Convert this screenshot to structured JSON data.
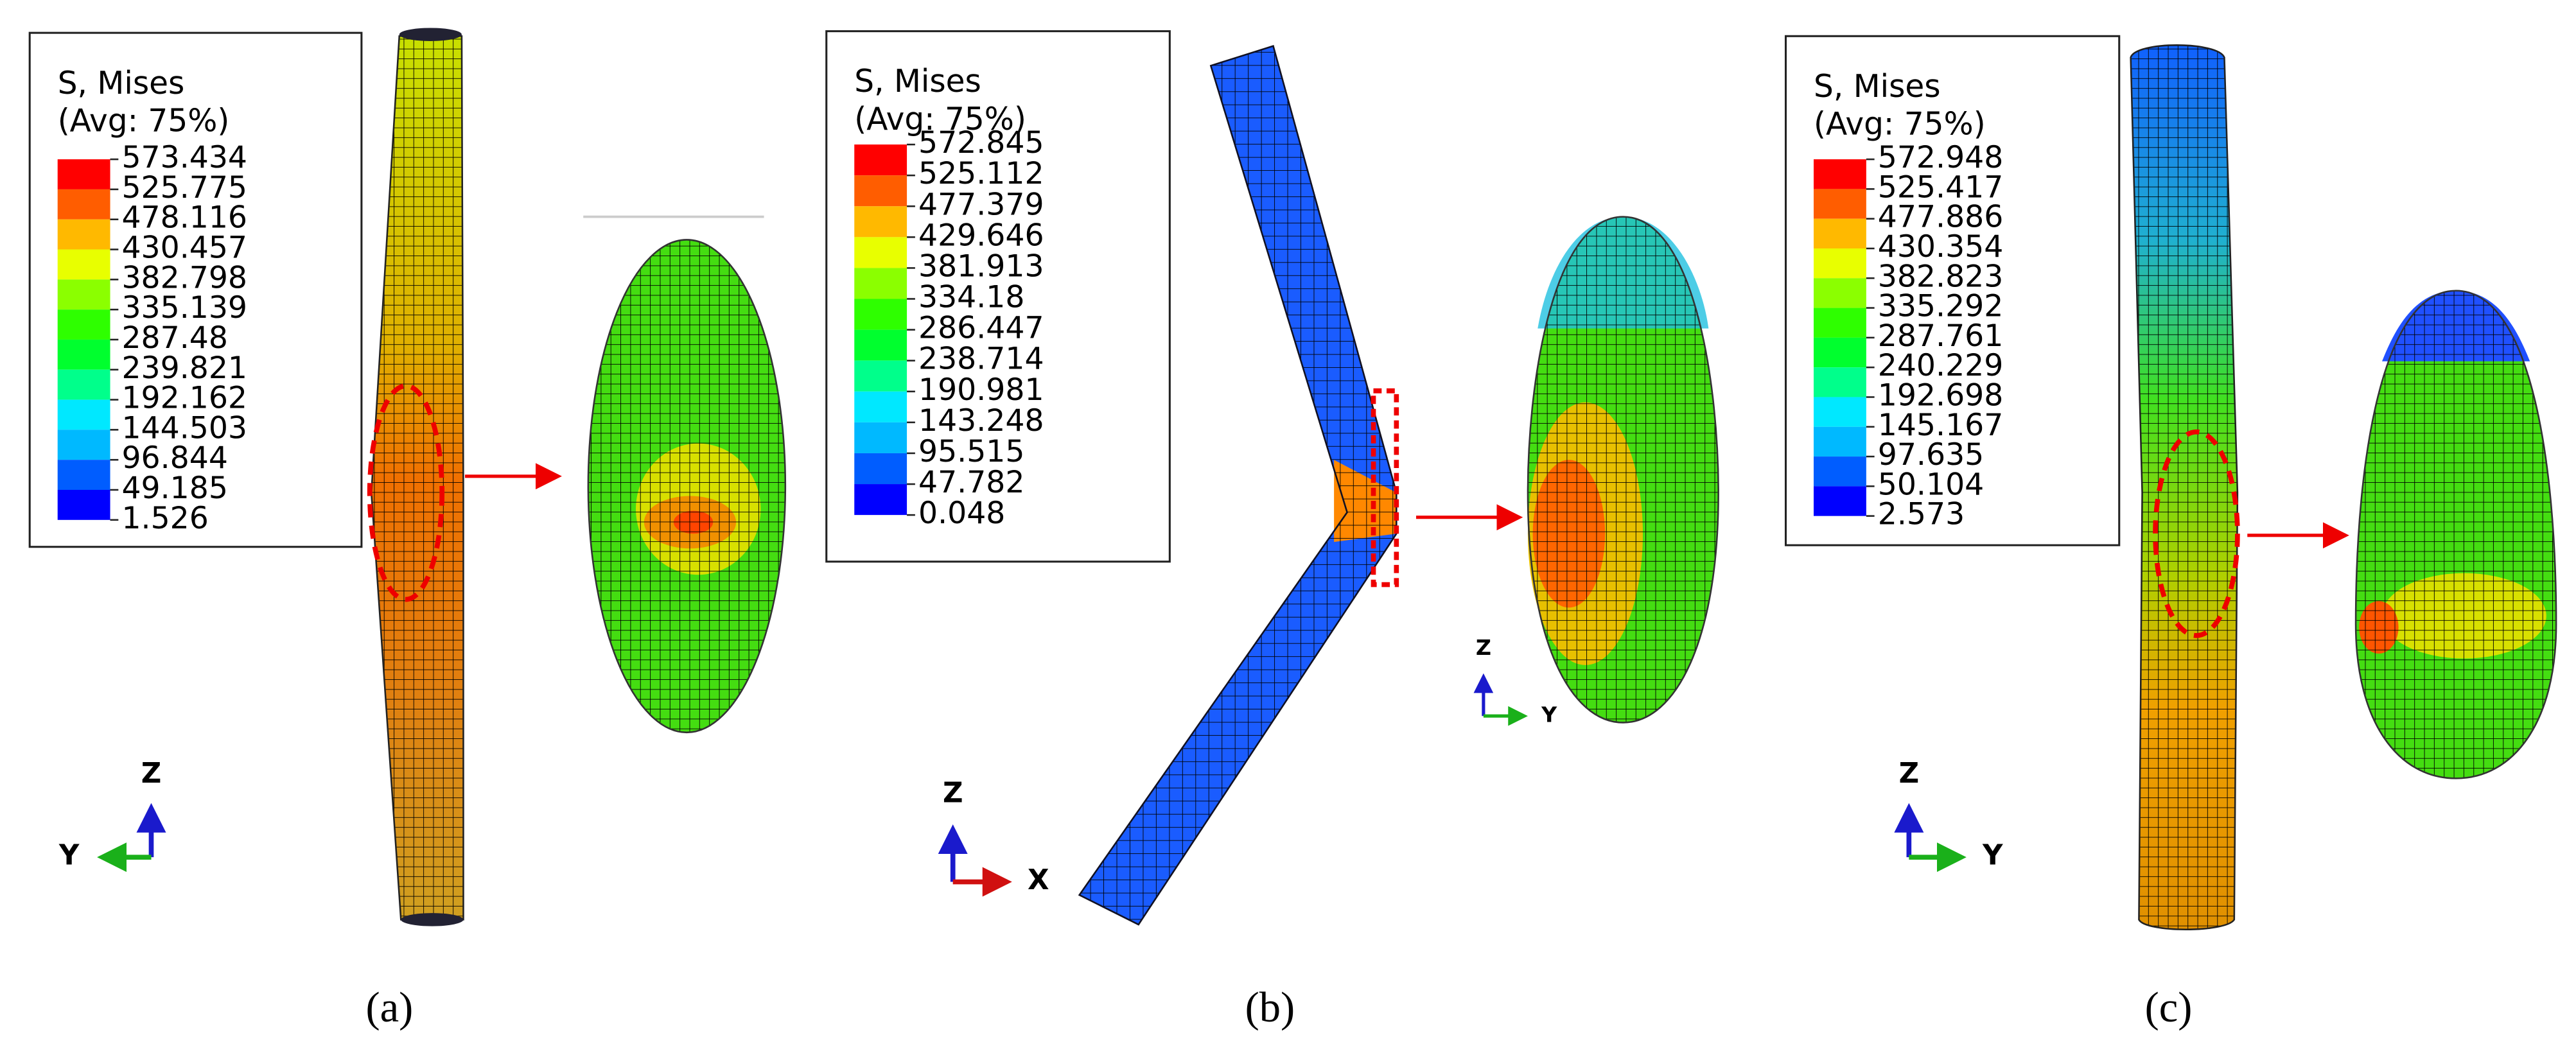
{
  "colors": [
    "#ff0000",
    "#ff5d00",
    "#ffb900",
    "#e8ff00",
    "#8bff00",
    "#2eff00",
    "#00ff2e",
    "#00ff8b",
    "#00e8ff",
    "#00b9ff",
    "#005dff",
    "#0000ff"
  ],
  "panels": [
    {
      "caption": "(a)",
      "legend": {
        "title": "S, Mises",
        "subtitle": "(Avg: 75%)",
        "levels": [
          573.434,
          525.775,
          478.116,
          430.457,
          382.798,
          335.139,
          287.48,
          239.821,
          192.162,
          144.503,
          96.844,
          49.185,
          1.526
        ]
      },
      "axes": [
        "Z",
        "Y"
      ]
    },
    {
      "caption": "(b)",
      "legend": {
        "title": "S, Mises",
        "subtitle": "(Avg: 75%)",
        "levels": [
          572.845,
          525.112,
          477.379,
          429.646,
          381.913,
          334.18,
          286.447,
          238.714,
          190.981,
          143.248,
          95.515,
          47.782,
          0.048
        ]
      },
      "axes": [
        "Z",
        "X"
      ],
      "section_axes": [
        "Z",
        "Y"
      ]
    },
    {
      "caption": "(c)",
      "legend": {
        "title": "S, Mises",
        "subtitle": "(Avg: 75%)",
        "levels": [
          572.948,
          525.417,
          477.886,
          430.354,
          382.823,
          335.292,
          287.761,
          240.229,
          192.698,
          145.167,
          97.635,
          50.104,
          2.573
        ]
      },
      "axes": [
        "Z",
        "Y"
      ]
    }
  ]
}
